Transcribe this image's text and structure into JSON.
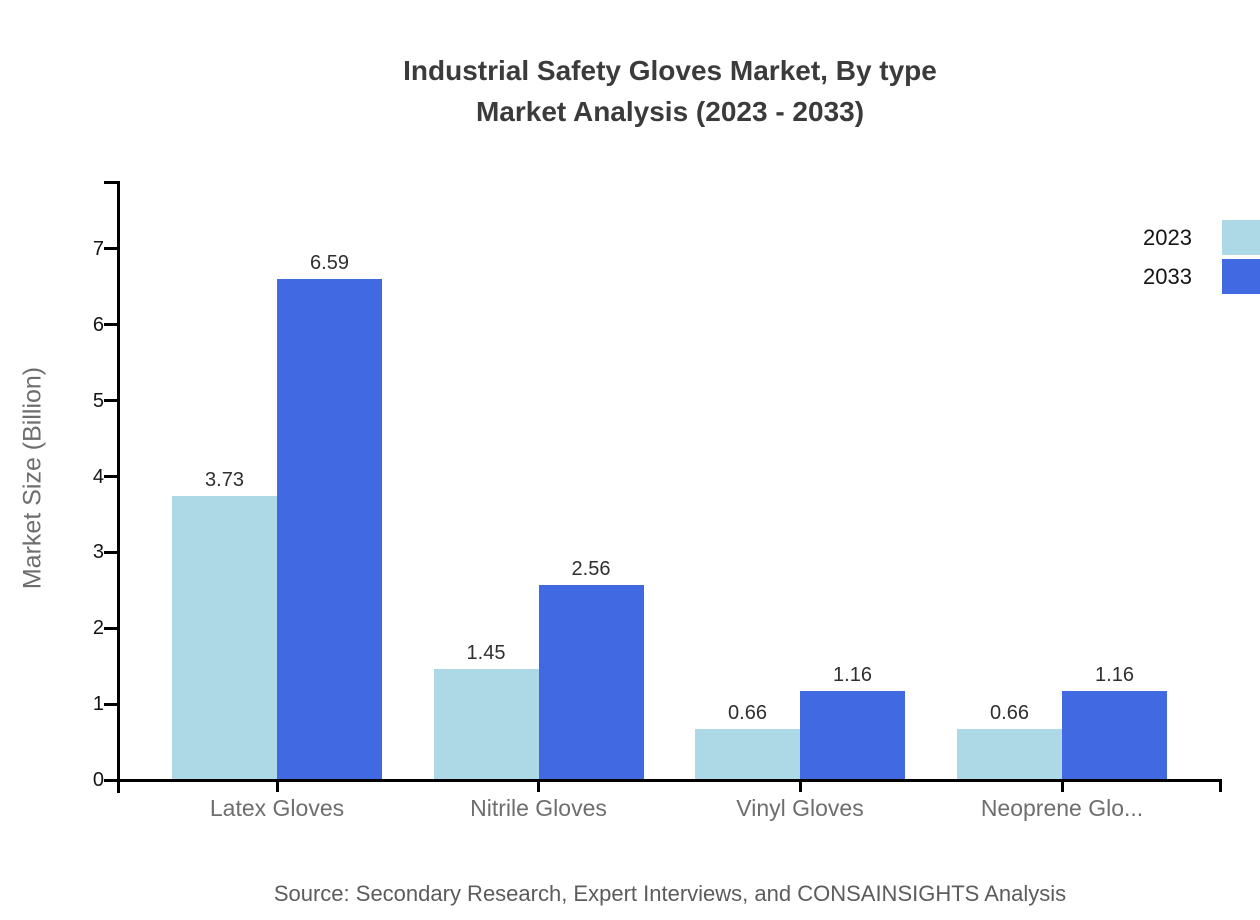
{
  "title": {
    "line1": "Industrial Safety Gloves Market, By type",
    "line2": "Market Analysis (2023 - 2033)"
  },
  "source_note": "Source: Secondary Research, Expert Interviews, and CONSAINSIGHTS Analysis",
  "chart_data": {
    "type": "bar",
    "title": "Industrial Safety Gloves Market, By type Market Analysis (2023 - 2033)",
    "categories": [
      "Latex Gloves",
      "Nitrile Gloves",
      "Vinyl Gloves",
      "Neoprene Glo..."
    ],
    "series": [
      {
        "name": "2023",
        "color": "#ADD8E6",
        "values": [
          3.73,
          1.45,
          0.66,
          0.66
        ]
      },
      {
        "name": "2033",
        "color": "#4169E1",
        "values": [
          6.59,
          2.56,
          1.16,
          1.16
        ]
      }
    ],
    "xlabel": "",
    "ylabel": "Market Size (Billion)",
    "ylim": [
      0,
      7.9
    ],
    "yticks": [
      0,
      1,
      2,
      3,
      4,
      5,
      6,
      7
    ],
    "grid": false,
    "legend_position": "top-right",
    "value_labels": true,
    "value_label_decimals": 2
  },
  "colors": {
    "axis": "#000000",
    "title_text": "#3b3b3b",
    "tick_label": "#141414",
    "category_label": "#6e6e6e",
    "axis_title": "#6e6e6e",
    "value_label": "#2f2f2f",
    "legend_text": "#141414",
    "source_text": "#5c5c5c",
    "background": "#ffffff"
  }
}
